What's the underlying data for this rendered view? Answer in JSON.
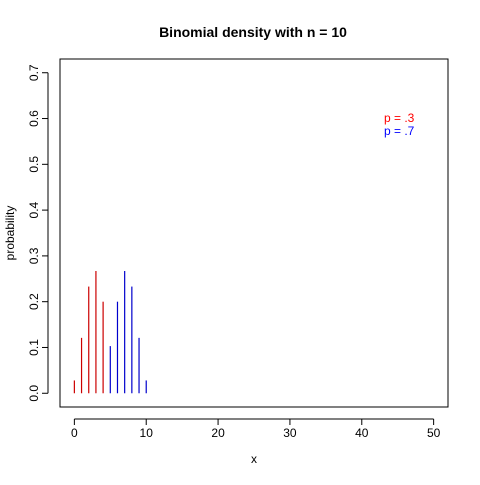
{
  "chart_data": {
    "type": "bar",
    "title": "Binomial density with n =  10",
    "xlabel": "x",
    "ylabel": "probability",
    "xlim": [
      -2,
      52
    ],
    "ylim": [
      -0.03,
      0.73
    ],
    "x_ticks": [
      0,
      10,
      20,
      30,
      40,
      50
    ],
    "y_ticks": [
      0.0,
      0.1,
      0.2,
      0.3,
      0.4,
      0.5,
      0.6,
      0.7
    ],
    "y_tick_labels": [
      "0.0",
      "0.1",
      "0.2",
      "0.3",
      "0.4",
      "0.5",
      "0.6",
      "0.7"
    ],
    "x_tick_labels": [
      "0",
      "10",
      "20",
      "30",
      "40",
      "50"
    ],
    "legend": {
      "placement": "top-right",
      "entries": [
        {
          "label": "p = .3",
          "color": "#ff0000"
        },
        {
          "label": "p = .7",
          "color": "#0000ff"
        }
      ]
    },
    "series": [
      {
        "name": "p = .3",
        "color": "#cc0000",
        "x": [
          0,
          1,
          2,
          3,
          4
        ],
        "values": [
          0.028,
          0.121,
          0.233,
          0.267,
          0.2
        ]
      },
      {
        "name": "p = .7",
        "color": "#0000cc",
        "x": [
          5,
          6,
          7,
          8,
          9,
          10
        ],
        "values": [
          0.103,
          0.2,
          0.267,
          0.233,
          0.121,
          0.028
        ]
      }
    ]
  }
}
